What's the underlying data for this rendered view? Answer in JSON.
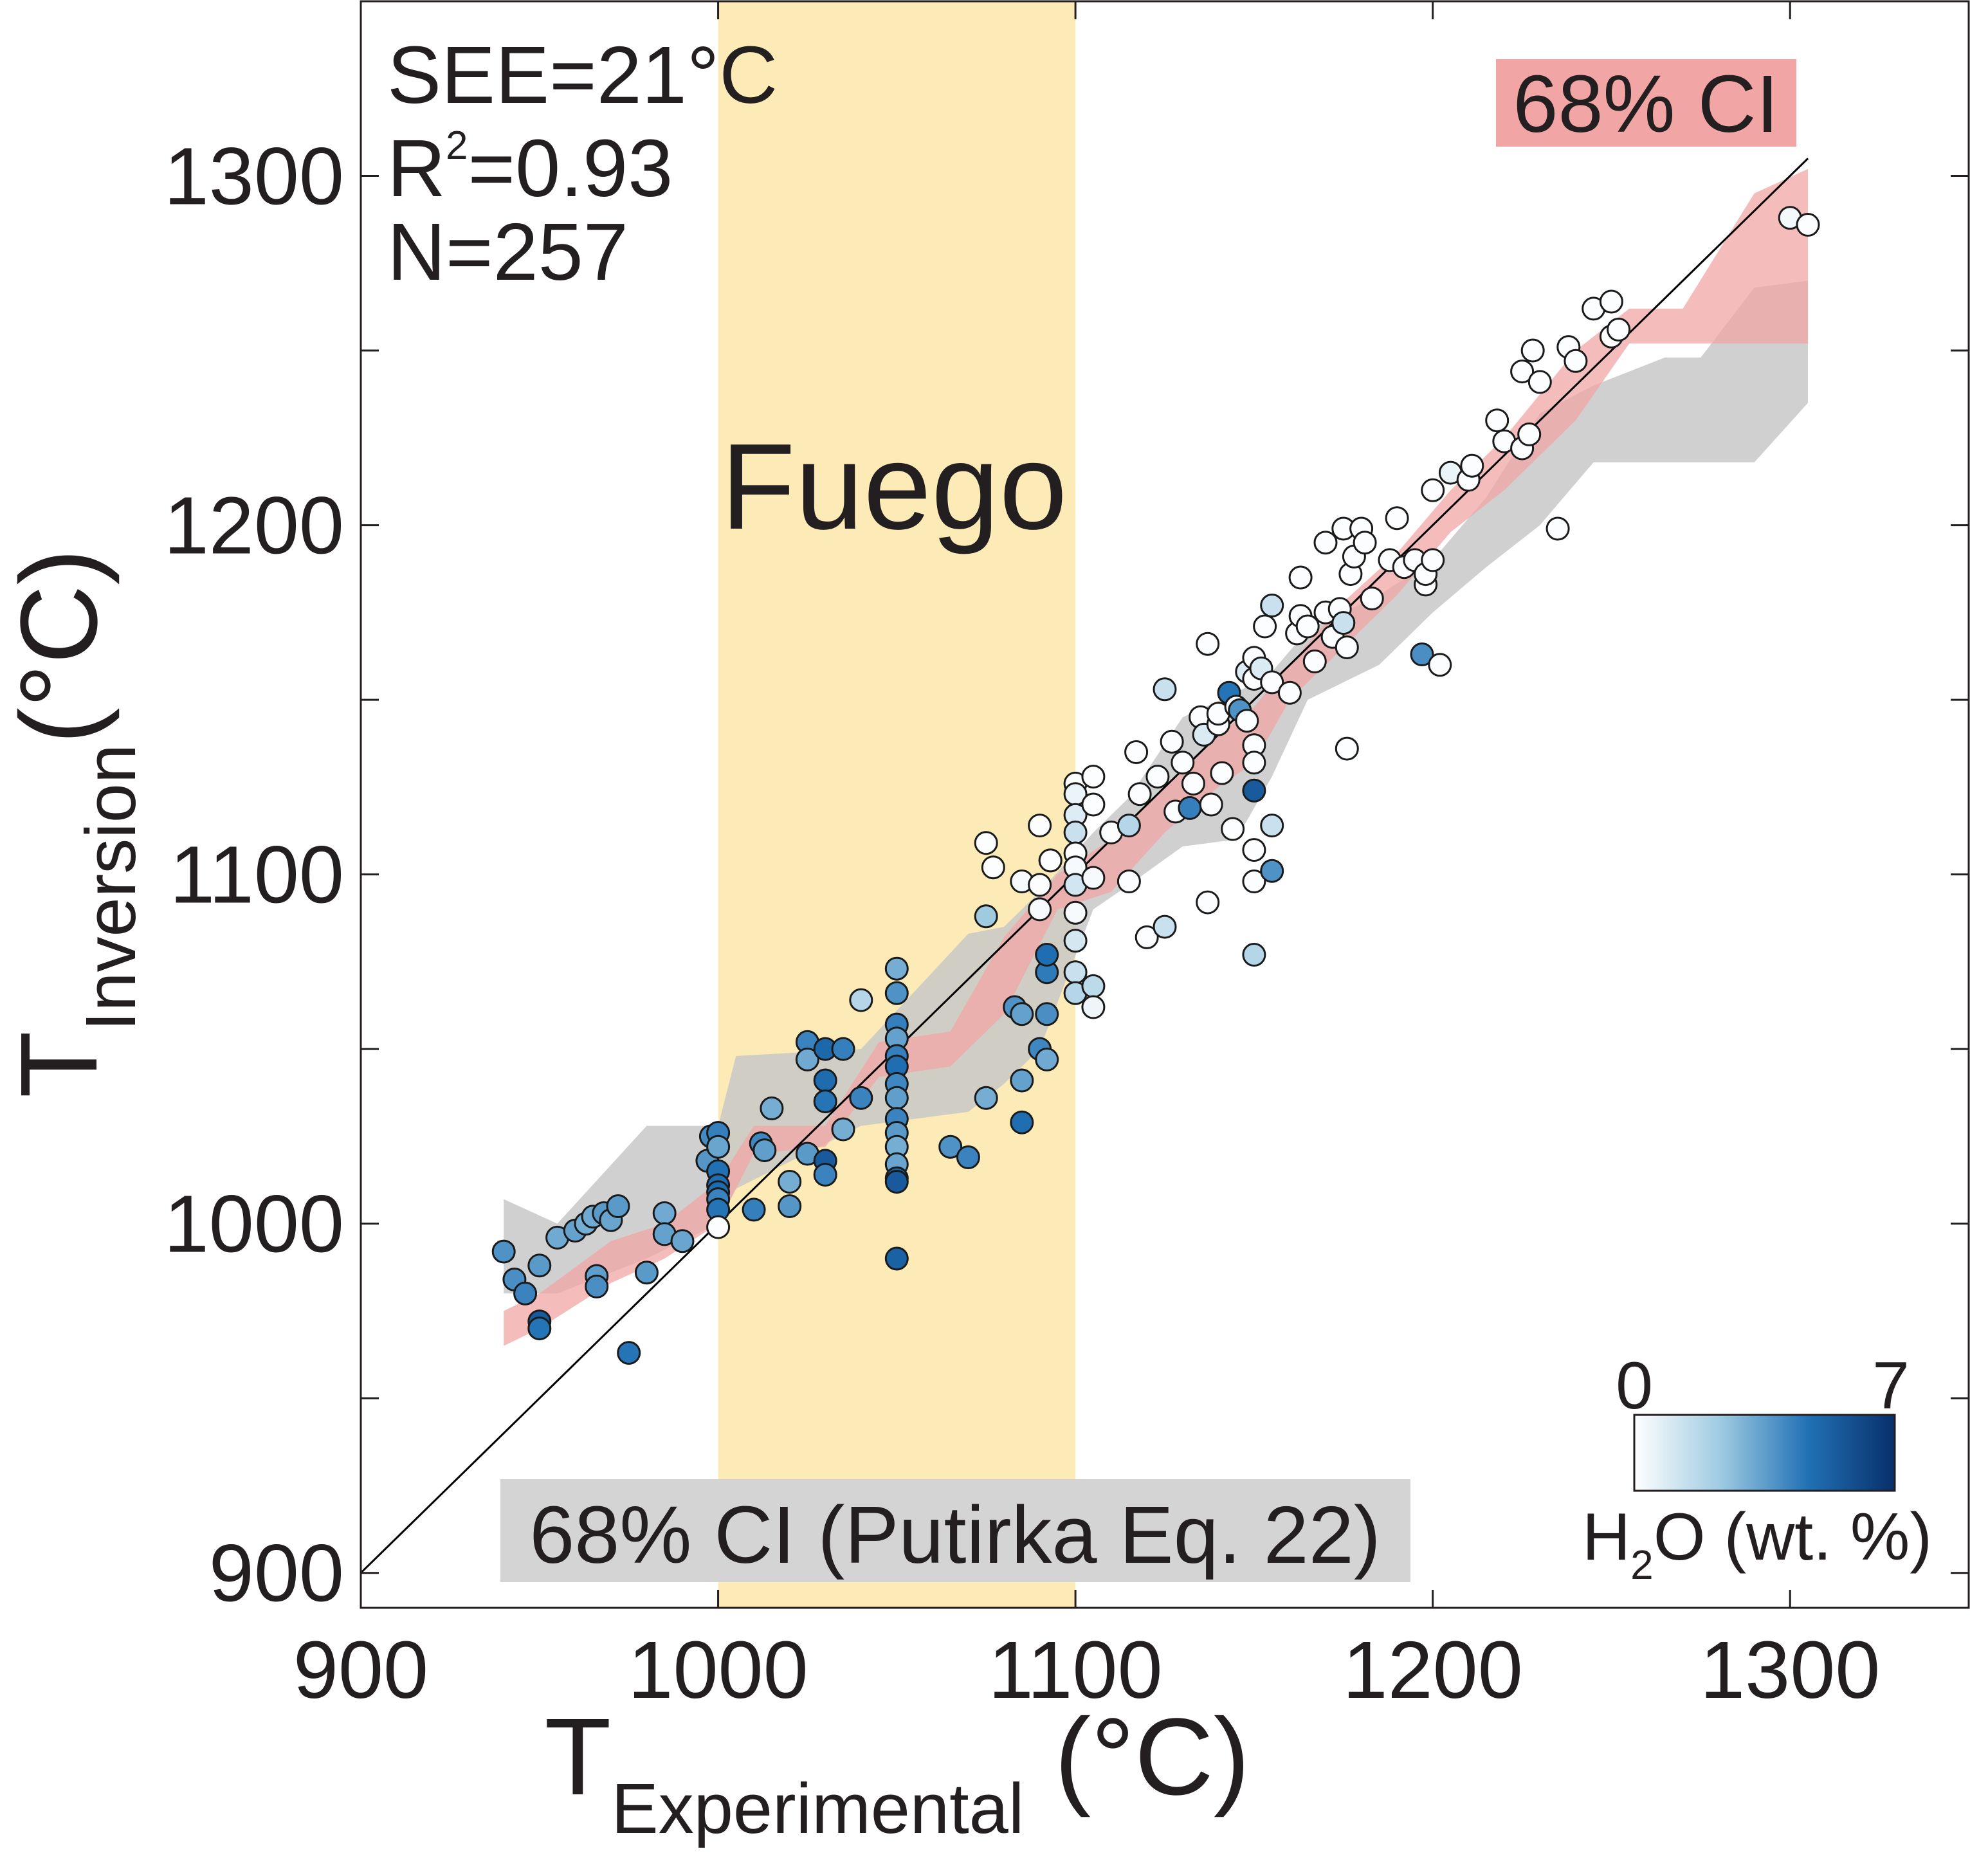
{
  "chart_data": {
    "type": "scatter",
    "title": "",
    "xlabel": {
      "main": "T",
      "sub": "Experimental",
      "unit": " (°C)"
    },
    "ylabel": {
      "main": "T",
      "sub": "Inversion",
      "unit": "(°C)"
    },
    "xlim": [
      900,
      1350
    ],
    "ylim": [
      890,
      1350
    ],
    "xticks": [
      900,
      1000,
      1100,
      1200,
      1300
    ],
    "yticks": [
      900,
      1000,
      1100,
      1200,
      1300
    ],
    "minor_yticks": [
      950,
      1050,
      1150,
      1250
    ],
    "grid": false,
    "stats": {
      "see": "SEE=21°C",
      "r2_prefix": "R",
      "r2_sup": "2",
      "r2_value": "=0.93",
      "n": "N=257"
    },
    "highlight_band": {
      "label": "Fuego",
      "x_range": [
        1000,
        1100
      ],
      "color": "#fcebb6"
    },
    "ci_label": {
      "text": "68% CI",
      "color": "#f2a5a5"
    },
    "putirka_ci_label": {
      "text": "68% CI (Putirka Eq. 22)",
      "color": "#d4d4d4"
    },
    "colorbar": {
      "label_main": "H",
      "label_sub": "2",
      "label_rest": "O (wt. %)",
      "min_label": "0",
      "max_label": "7",
      "min": 0,
      "max": 7,
      "colors": [
        "#ffffff",
        "#9ecae1",
        "#2171b5",
        "#08306b"
      ]
    },
    "one_to_one_line": {
      "from": [
        900,
        900
      ],
      "to": [
        1305,
        1305
      ]
    },
    "putirka_ci_band": {
      "color": "#c8c8c8",
      "x": [
        940,
        955,
        980,
        1000,
        1005,
        1040,
        1070,
        1080,
        1090,
        1105,
        1115,
        1130,
        1145,
        1155,
        1165,
        1185,
        1200,
        1215,
        1230,
        1245,
        1265,
        1275,
        1290,
        1305
      ],
      "upper": [
        1007,
        1000,
        1028,
        1028,
        1048,
        1050,
        1083,
        1085,
        1095,
        1112,
        1122,
        1145,
        1152,
        1158,
        1170,
        1180,
        1190,
        1208,
        1232,
        1240,
        1248,
        1248,
        1268,
        1270
      ],
      "lower": [
        980,
        980,
        990,
        1000,
        1010,
        1028,
        1032,
        1040,
        1050,
        1090,
        1097,
        1108,
        1110,
        1128,
        1150,
        1160,
        1175,
        1188,
        1200,
        1218,
        1218,
        1218,
        1218,
        1235
      ]
    },
    "ci_band": {
      "color": "#f2a5a5",
      "x": [
        940,
        950,
        970,
        985,
        1000,
        1010,
        1030,
        1045,
        1065,
        1080,
        1095,
        1110,
        1125,
        1140,
        1150,
        1160,
        1175,
        1190,
        1205,
        1220,
        1240,
        1255,
        1270,
        1290,
        1305
      ],
      "upper": [
        975,
        980,
        995,
        1000,
        1012,
        1028,
        1028,
        1052,
        1055,
        1082,
        1100,
        1110,
        1125,
        1140,
        1148,
        1160,
        1178,
        1192,
        1210,
        1225,
        1250,
        1262,
        1262,
        1295,
        1302
      ],
      "lower": [
        965,
        970,
        983,
        990,
        1000,
        1020,
        1022,
        1042,
        1045,
        1060,
        1090,
        1095,
        1112,
        1125,
        1132,
        1150,
        1165,
        1180,
        1198,
        1210,
        1230,
        1252,
        1252,
        1252,
        1252
      ]
    },
    "series": [
      {
        "name": "",
        "points": [
          [
            940,
            992,
            3.8
          ],
          [
            943,
            984,
            3.9
          ],
          [
            946,
            980,
            4.2
          ],
          [
            950,
            988,
            3.6
          ],
          [
            950,
            972,
            5.5
          ],
          [
            950,
            970,
            4.6
          ],
          [
            955,
            996,
            3.2
          ],
          [
            960,
            998,
            3.4
          ],
          [
            963,
            1000,
            3.1
          ],
          [
            965,
            1002,
            3.2
          ],
          [
            966,
            985,
            3.5
          ],
          [
            966,
            982,
            3.9
          ],
          [
            968,
            1003,
            3.6
          ],
          [
            970,
            1001,
            3.3
          ],
          [
            972,
            1005,
            3.6
          ],
          [
            975,
            963,
            4.6
          ],
          [
            980,
            986,
            3.6
          ],
          [
            985,
            1003,
            3.2
          ],
          [
            985,
            997,
            3.4
          ],
          [
            990,
            995,
            3.3
          ],
          [
            997,
            1018,
            3.7
          ],
          [
            998,
            1025,
            4.0
          ],
          [
            1000,
            1026,
            4.3
          ],
          [
            1000,
            1022,
            3.3
          ],
          [
            1000,
            1015,
            4.7
          ],
          [
            1000,
            1011,
            4.8
          ],
          [
            1000,
            1009,
            4.9
          ],
          [
            1000,
            1007,
            4.2
          ],
          [
            1000,
            1004,
            4.6
          ],
          [
            1000,
            999,
            0.1
          ],
          [
            1010,
            1004,
            4.3
          ],
          [
            1012,
            1023,
            4.1
          ],
          [
            1013,
            1021,
            3.5
          ],
          [
            1015,
            1033,
            3.1
          ],
          [
            1020,
            1005,
            3.7
          ],
          [
            1020,
            1012,
            3.1
          ],
          [
            1025,
            1020,
            3.6
          ],
          [
            1025,
            1052,
            4.2
          ],
          [
            1025,
            1047,
            3.2
          ],
          [
            1030,
            1050,
            5.0
          ],
          [
            1030,
            1041,
            4.9
          ],
          [
            1030,
            1035,
            4.6
          ],
          [
            1030,
            1018,
            5.5
          ],
          [
            1030,
            1014,
            4.2
          ],
          [
            1035,
            1050,
            4.3
          ],
          [
            1035,
            1027,
            3.1
          ],
          [
            1040,
            1064,
            1.8
          ],
          [
            1040,
            1036,
            4.2
          ],
          [
            1050,
            1073,
            3.1
          ],
          [
            1050,
            1066,
            3.8
          ],
          [
            1050,
            1057,
            4.3
          ],
          [
            1050,
            1053,
            3.4
          ],
          [
            1050,
            1048,
            4.3
          ],
          [
            1050,
            1045,
            4.8
          ],
          [
            1050,
            1040,
            4.1
          ],
          [
            1050,
            1036,
            3.5
          ],
          [
            1050,
            1030,
            4.2
          ],
          [
            1050,
            1026,
            3.6
          ],
          [
            1050,
            1022,
            3.1
          ],
          [
            1050,
            1017,
            3.3
          ],
          [
            1050,
            1013,
            5.2
          ],
          [
            1050,
            1012,
            5.5
          ],
          [
            1050,
            990,
            5.2
          ],
          [
            1065,
            1022,
            3.8
          ],
          [
            1070,
            1019,
            4.2
          ],
          [
            1075,
            1036,
            3.1
          ],
          [
            1075,
            1088,
            2.3
          ],
          [
            1075,
            1109,
            0.1
          ],
          [
            1077,
            1102,
            0.1
          ],
          [
            1083,
            1062,
            3.8
          ],
          [
            1085,
            1060,
            3.4
          ],
          [
            1085,
            1029,
            4.8
          ],
          [
            1085,
            1041,
            3.4
          ],
          [
            1085,
            1098,
            0.2
          ],
          [
            1090,
            1114,
            0.1
          ],
          [
            1090,
            1097,
            0.1
          ],
          [
            1090,
            1090,
            0.2
          ],
          [
            1090,
            1050,
            4.1
          ],
          [
            1092,
            1047,
            3.2
          ],
          [
            1092,
            1072,
            4.4
          ],
          [
            1092,
            1077,
            4.8
          ],
          [
            1092,
            1060,
            3.9
          ],
          [
            1093,
            1104,
            0.3
          ],
          [
            1093,
            1104,
            0.1
          ],
          [
            1100,
            1126,
            0.1
          ],
          [
            1100,
            1123,
            0.5
          ],
          [
            1100,
            1117,
            0.8
          ],
          [
            1100,
            1112,
            1.3
          ],
          [
            1100,
            1106,
            0.1
          ],
          [
            1100,
            1102,
            0.2
          ],
          [
            1100,
            1097,
            1.1
          ],
          [
            1100,
            1089,
            0.2
          ],
          [
            1100,
            1081,
            1.0
          ],
          [
            1100,
            1072,
            1.3
          ],
          [
            1100,
            1066,
            1.8
          ],
          [
            1105,
            1128,
            0.1
          ],
          [
            1105,
            1120,
            0.1
          ],
          [
            1105,
            1068,
            1.6
          ],
          [
            1105,
            1062,
            0.4
          ],
          [
            1105,
            1099,
            0.2
          ],
          [
            1110,
            1112,
            0.1
          ],
          [
            1115,
            1098,
            0.1
          ],
          [
            1115,
            1114,
            1.8
          ],
          [
            1117,
            1135,
            0.1
          ],
          [
            1118,
            1123,
            0.1
          ],
          [
            1120,
            1082,
            0.1
          ],
          [
            1123,
            1128,
            0.1
          ],
          [
            1125,
            1085,
            1.3
          ],
          [
            1125,
            1153,
            1.3
          ],
          [
            1127,
            1138,
            0.1
          ],
          [
            1128,
            1118,
            0.1
          ],
          [
            1130,
            1132,
            0.1
          ],
          [
            1132,
            1119,
            4.3
          ],
          [
            1133,
            1126,
            0.1
          ],
          [
            1135,
            1145,
            0.1
          ],
          [
            1136,
            1140,
            0.9
          ],
          [
            1137,
            1166,
            0.1
          ],
          [
            1137,
            1092,
            0.1
          ],
          [
            1138,
            1120,
            0.1
          ],
          [
            1140,
            1143,
            0.1
          ],
          [
            1140,
            1146,
            0.1
          ],
          [
            1141,
            1129,
            0.1
          ],
          [
            1143,
            1152,
            4.6
          ],
          [
            1144,
            1113,
            0.1
          ],
          [
            1145,
            1148,
            0.1
          ],
          [
            1146,
            1147,
            3.8
          ],
          [
            1148,
            1158,
            0.8
          ],
          [
            1148,
            1144,
            0.1
          ],
          [
            1150,
            1162,
            0.1
          ],
          [
            1150,
            1156,
            0.1
          ],
          [
            1150,
            1137,
            0.1
          ],
          [
            1150,
            1132,
            0.1
          ],
          [
            1150,
            1124,
            5.5
          ],
          [
            1150,
            1107,
            0.1
          ],
          [
            1150,
            1098,
            0.1
          ],
          [
            1150,
            1077,
            1.8
          ],
          [
            1152,
            1159,
            0.9
          ],
          [
            1153,
            1171,
            0.1
          ],
          [
            1155,
            1177,
            1.3
          ],
          [
            1155,
            1155,
            0.1
          ],
          [
            1155,
            1101,
            3.8
          ],
          [
            1155,
            1114,
            1.3
          ],
          [
            1160,
            1152,
            0.1
          ],
          [
            1162,
            1169,
            0.1
          ],
          [
            1163,
            1174,
            0.1
          ],
          [
            1163,
            1185,
            0.1
          ],
          [
            1165,
            1171,
            0.1
          ],
          [
            1167,
            1161,
            0.1
          ],
          [
            1170,
            1195,
            0.1
          ],
          [
            1170,
            1175,
            0.1
          ],
          [
            1172,
            1168,
            0.1
          ],
          [
            1174,
            1176,
            0.1
          ],
          [
            1175,
            1172,
            1.3
          ],
          [
            1175,
            1199,
            0.1
          ],
          [
            1176,
            1165,
            0.1
          ],
          [
            1176,
            1136,
            0.1
          ],
          [
            1177,
            1186,
            0.1
          ],
          [
            1178,
            1191,
            0.1
          ],
          [
            1180,
            1199,
            0.1
          ],
          [
            1181,
            1195,
            0.1
          ],
          [
            1183,
            1179,
            0.1
          ],
          [
            1188,
            1190,
            0.1
          ],
          [
            1190,
            1202,
            0.1
          ],
          [
            1192,
            1188,
            0.1
          ],
          [
            1195,
            1190,
            0.1
          ],
          [
            1197,
            1163,
            3.9
          ],
          [
            1198,
            1183,
            0.1
          ],
          [
            1198,
            1186,
            0.1
          ],
          [
            1200,
            1190,
            0.1
          ],
          [
            1200,
            1210,
            0.1
          ],
          [
            1202,
            1160,
            0.1
          ],
          [
            1205,
            1215,
            0.5
          ],
          [
            1210,
            1213,
            0.1
          ],
          [
            1211,
            1217,
            0.1
          ],
          [
            1218,
            1230,
            0.1
          ],
          [
            1220,
            1224,
            0.1
          ],
          [
            1225,
            1244,
            0.1
          ],
          [
            1225,
            1222,
            0.1
          ],
          [
            1227,
            1226,
            0.1
          ],
          [
            1228,
            1250,
            0.1
          ],
          [
            1230,
            1241,
            0.1
          ],
          [
            1235,
            1199,
            0.1
          ],
          [
            1238,
            1251,
            0.1
          ],
          [
            1240,
            1247,
            0.1
          ],
          [
            1245,
            1262,
            0.1
          ],
          [
            1250,
            1264,
            0.1
          ],
          [
            1250,
            1254,
            0.1
          ],
          [
            1252,
            1256,
            0.1
          ],
          [
            1300,
            1288,
            0.3
          ],
          [
            1305,
            1286,
            0.1
          ]
        ]
      }
    ]
  }
}
